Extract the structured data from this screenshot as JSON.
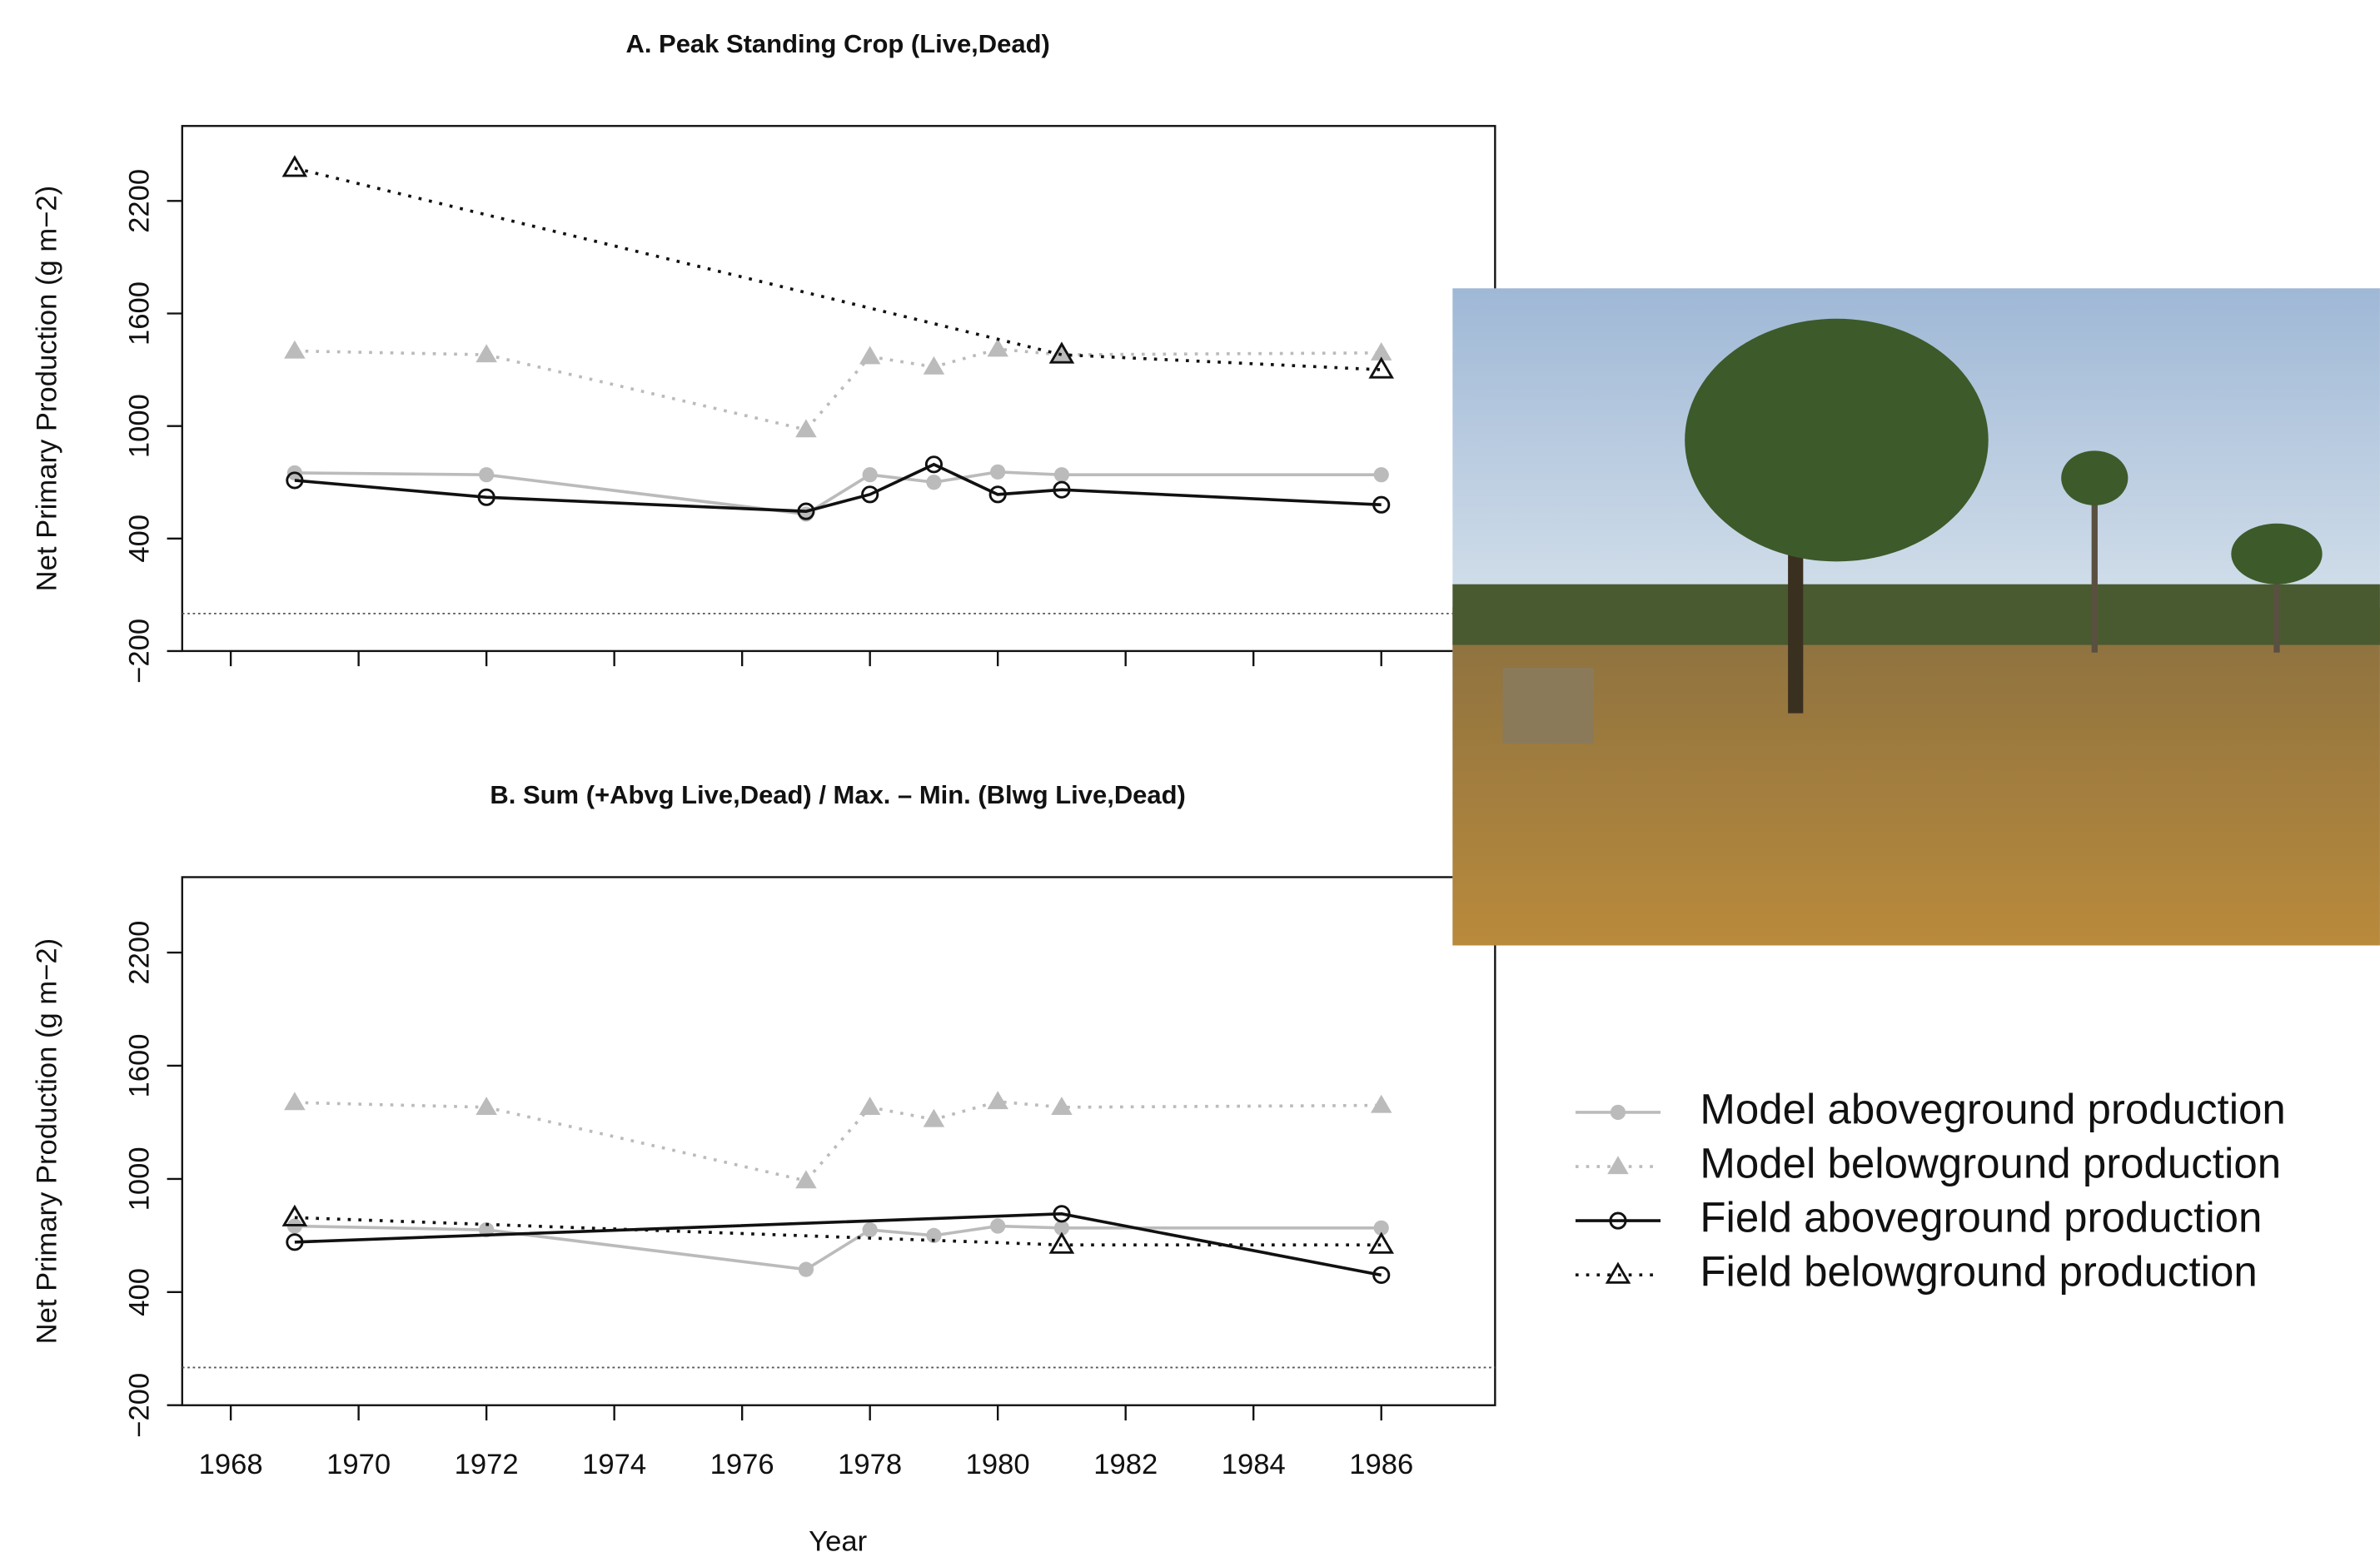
{
  "chart_data": [
    {
      "type": "line",
      "title": "A.  Peak Standing Crop (Live,Dead)",
      "ylabel": "Net Primary Production (g m−2)",
      "xlim": [
        1967.24,
        1987.78
      ],
      "ylim": [
        -200,
        2600
      ],
      "xticks": [
        1968,
        1970,
        1972,
        1974,
        1976,
        1978,
        1980,
        1982,
        1984,
        1986
      ],
      "show_xtick_labels": false,
      "yticks": [
        {
          "value": -200,
          "label": "−200"
        },
        400,
        1000,
        1600,
        2200
      ],
      "hline": 0,
      "series": [
        {
          "color": "#bbbbbb",
          "linestyle": "solid",
          "marker": "circle",
          "filled": true,
          "x": [
            1969,
            1972,
            1977,
            1978,
            1979,
            1980,
            1981,
            1986
          ],
          "values": [
            750,
            740,
            530,
            740,
            700,
            755,
            740,
            740
          ]
        },
        {
          "color": "#bbbbbb",
          "linestyle": "dotted",
          "marker": "triangle",
          "filled": true,
          "x": [
            1969,
            1972,
            1977,
            1978,
            1979,
            1980,
            1981,
            1986
          ],
          "values": [
            1400,
            1380,
            980,
            1370,
            1315,
            1410,
            1380,
            1390
          ]
        },
        {
          "color": "#111111",
          "linestyle": "solid",
          "marker": "circle",
          "filled": false,
          "x": [
            1969,
            1972,
            1977,
            1978,
            1979,
            1980,
            1981,
            1986
          ],
          "values": [
            710,
            620,
            545,
            635,
            795,
            635,
            660,
            580
          ]
        },
        {
          "color": "#111111",
          "linestyle": "dotted",
          "marker": "triangle",
          "filled": false,
          "x": [
            1969,
            1981,
            1986
          ],
          "values": [
            2375,
            1380,
            1300
          ]
        }
      ]
    },
    {
      "type": "line",
      "title": "B.  Sum (+Abvg Live,Dead) / Max. – Min. (Blwg Live,Dead)",
      "ylabel": "Net Primary Production (g m−2)",
      "xlabel": "Year",
      "xlim": [
        1967.24,
        1987.78
      ],
      "ylim": [
        -200,
        2600
      ],
      "xticks": [
        1968,
        1970,
        1972,
        1974,
        1976,
        1978,
        1980,
        1982,
        1984,
        1986
      ],
      "show_xtick_labels": true,
      "yticks": [
        {
          "value": -200,
          "label": "−200"
        },
        400,
        1000,
        1600,
        2200
      ],
      "hline": 0,
      "series": [
        {
          "name": "Model aboveground production",
          "color": "#bbbbbb",
          "linestyle": "solid",
          "marker": "circle",
          "filled": true,
          "x": [
            1969,
            1972,
            1977,
            1978,
            1979,
            1980,
            1981,
            1986
          ],
          "values": [
            750,
            730,
            520,
            730,
            700,
            750,
            740,
            740
          ]
        },
        {
          "name": "Model belowground production",
          "color": "#bbbbbb",
          "linestyle": "dotted",
          "marker": "triangle",
          "filled": true,
          "x": [
            1969,
            1972,
            1977,
            1978,
            1979,
            1980,
            1981,
            1986
          ],
          "values": [
            1405,
            1380,
            990,
            1380,
            1315,
            1410,
            1380,
            1390
          ]
        },
        {
          "name": "Field aboveground production",
          "color": "#111111",
          "linestyle": "solid",
          "marker": "circle",
          "filled": false,
          "x": [
            1969,
            1981,
            1986
          ],
          "values": [
            665,
            815,
            490
          ]
        },
        {
          "name": "Field belowground production",
          "color": "#111111",
          "linestyle": "dotted",
          "marker": "triangle",
          "filled": false,
          "x": [
            1969,
            1981,
            1986
          ],
          "values": [
            795,
            650,
            650
          ]
        }
      ]
    }
  ]
}
